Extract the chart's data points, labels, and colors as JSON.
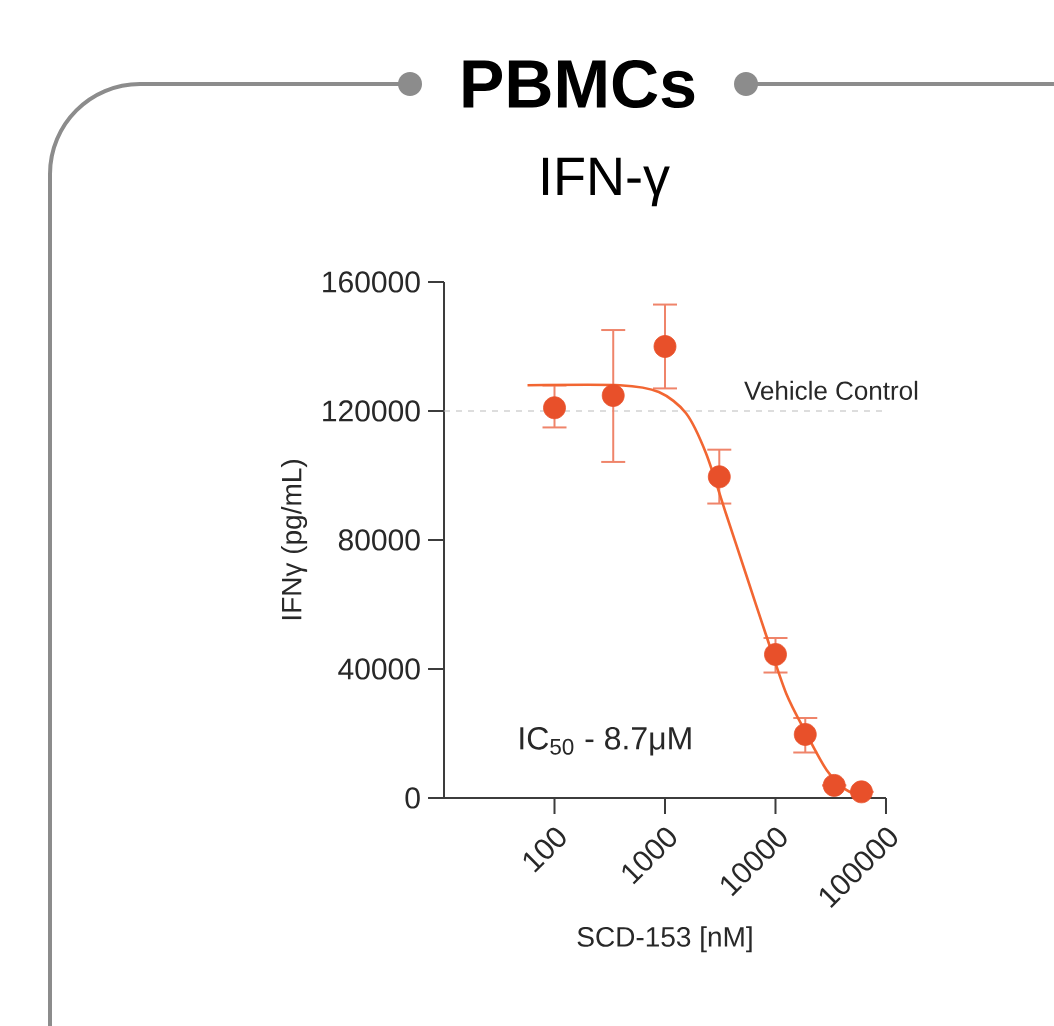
{
  "chart_data": {
    "type": "scatter",
    "title": "PBMCs",
    "subtitle": "IFN-γ",
    "xlabel": "SCD-153 [nM]",
    "ylabel": "IFNγ (pg/mL)",
    "log": "x",
    "xlim": [
      10,
      100000
    ],
    "xticks": [
      100,
      1000,
      10000,
      100000
    ],
    "ylim": [
      0,
      160000
    ],
    "yticks": [
      0,
      40000,
      80000,
      120000,
      160000
    ],
    "series": [
      {
        "marker": "circle",
        "color": "#e8502a",
        "x": [
          100,
          340,
          1000,
          3100,
          10000,
          18600,
          34000,
          60000
        ],
        "values": [
          121000,
          124800,
          140000,
          99600,
          44500,
          19700,
          3900,
          1900
        ],
        "errors": [
          [
            114900,
            127900
          ],
          [
            104200,
            145100
          ],
          [
            127000,
            153000
          ],
          [
            91300,
            108000
          ],
          [
            38900,
            49600
          ],
          [
            14100,
            24800
          ],
          null,
          null
        ]
      },
      {
        "type": "line",
        "marker": "none",
        "color": "#f26632",
        "x": [
          57,
          390,
          880,
          1550,
          2350,
          3560,
          5380,
          8130,
          12500,
          19000,
          29000,
          43700,
          66000
        ],
        "values": [
          128000,
          128000,
          125900,
          119300,
          106900,
          88200,
          69600,
          51000,
          32400,
          20000,
          8700,
          2500,
          400
        ]
      }
    ],
    "ref_lines": [
      {
        "axis": "y",
        "value": 120000,
        "label": "Vehicle Control",
        "color": "#bbbbbb",
        "line_style": "dashed"
      }
    ],
    "annotations": [
      "IC$_{50}$ - 8.7μM"
    ]
  }
}
